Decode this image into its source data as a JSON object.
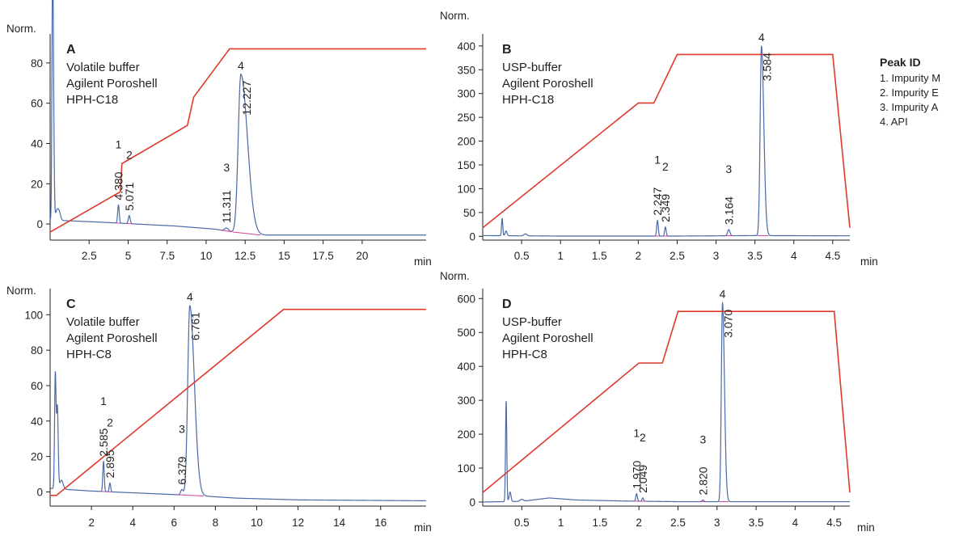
{
  "legend": {
    "title": "Peak ID",
    "items": [
      "1. Impurity M",
      "2. Impurity E",
      "3. Impurity A",
      "4. API"
    ]
  },
  "colors": {
    "signal": "#4a6aa8",
    "gradient": "#e03a2a",
    "baseline": "#d0439b",
    "axis": "#231f20"
  },
  "chart_data": [
    {
      "type": "line",
      "panel": "A",
      "description": [
        "Volatile buffer",
        "Agilent Poroshell",
        "HPH-C18"
      ],
      "ylabel": "Norm.",
      "xlabel": "min",
      "xlim": [
        0,
        24.1
      ],
      "ylim": [
        -8,
        92
      ],
      "x_ticks": [
        2.5,
        5,
        7.5,
        10,
        12.5,
        15,
        17.5,
        20
      ],
      "x_tick_labels": [
        "2.5",
        "5",
        "7.5",
        "10",
        "12.5",
        "15",
        "17.5",
        "20"
      ],
      "y_ticks": [
        0,
        20,
        40,
        60,
        80
      ],
      "y_tick_labels": [
        "0",
        "20",
        "40",
        "60",
        "80"
      ],
      "base_drift": [
        [
          0,
          2.0
        ],
        [
          3,
          1.0
        ],
        [
          8,
          -1.0
        ],
        [
          10.5,
          -2.5
        ],
        [
          13,
          -5.5
        ],
        [
          24.1,
          -5.5
        ]
      ],
      "peaks": [
        {
          "t": 0.15,
          "h": 88,
          "w": 0.04,
          "id": "",
          "rt": ""
        },
        {
          "t": 0.2,
          "h": 64,
          "w": 0.05,
          "id": "",
          "rt": ""
        },
        {
          "t": 0.4,
          "h": 3,
          "w": 0.08,
          "id": "",
          "rt": ""
        },
        {
          "t": 0.55,
          "h": 5,
          "w": 0.1,
          "id": "",
          "rt": ""
        },
        {
          "t": 4.38,
          "h": 9,
          "w": 0.05,
          "id": "1",
          "rt": "4.380"
        },
        {
          "t": 5.071,
          "h": 4,
          "w": 0.06,
          "id": "2",
          "rt": "5.071"
        },
        {
          "t": 11.311,
          "h": 1.5,
          "w": 0.12,
          "id": "3",
          "rt": "11.311"
        },
        {
          "t": 12.227,
          "h": 79,
          "w": 0.17,
          "wr": 0.42,
          "id": "4",
          "rt": "12.227"
        }
      ],
      "gradient_label_y": 0.5,
      "gradient": [
        [
          0,
          -4
        ],
        [
          4.5,
          16
        ],
        [
          4.6,
          30
        ],
        [
          8.8,
          49
        ],
        [
          9.2,
          63
        ],
        [
          11.5,
          87
        ],
        [
          24.1,
          87
        ]
      ]
    },
    {
      "type": "line",
      "panel": "B",
      "description": [
        "USP-buffer",
        "Agilent Poroshell",
        "HPH-C18"
      ],
      "ylabel": "Norm.",
      "xlabel": "min",
      "xlim": [
        0,
        4.72
      ],
      "ylim": [
        -8,
        415
      ],
      "x_ticks": [
        0.5,
        1,
        1.5,
        2,
        2.5,
        3,
        3.5,
        4,
        4.5
      ],
      "x_tick_labels": [
        "0.5",
        "1",
        "1.5",
        "2",
        "2.5",
        "3",
        "3.5",
        "4",
        "4.5"
      ],
      "y_ticks": [
        0,
        50,
        100,
        150,
        200,
        250,
        300,
        350,
        400
      ],
      "y_tick_labels": [
        "0",
        "50",
        "100",
        "150",
        "200",
        "250",
        "300",
        "350",
        "400"
      ],
      "base_drift": [
        [
          0,
          1.5
        ],
        [
          1,
          0.5
        ],
        [
          2.5,
          0.5
        ],
        [
          3.5,
          1.5
        ],
        [
          4.72,
          1
        ]
      ],
      "peaks": [
        {
          "t": 0.25,
          "h": 36,
          "w": 0.008,
          "id": "",
          "rt": ""
        },
        {
          "t": 0.3,
          "h": 10,
          "w": 0.012,
          "id": "",
          "rt": ""
        },
        {
          "t": 0.55,
          "h": 4,
          "w": 0.02,
          "id": "",
          "rt": ""
        },
        {
          "t": 2.247,
          "h": 33,
          "w": 0.01,
          "id": "1",
          "rt": "2.247"
        },
        {
          "t": 2.349,
          "h": 19,
          "w": 0.01,
          "id": "2",
          "rt": "2.349"
        },
        {
          "t": 3.164,
          "h": 13,
          "w": 0.015,
          "id": "3",
          "rt": "3.164"
        },
        {
          "t": 3.584,
          "h": 398,
          "w": 0.017,
          "wr": 0.03,
          "id": "4",
          "rt": "3.584"
        }
      ],
      "gradient_label_y": 0.5,
      "gradient": [
        [
          0,
          18
        ],
        [
          2,
          280
        ],
        [
          2.2,
          280
        ],
        [
          2.5,
          382
        ],
        [
          4.5,
          382
        ],
        [
          4.72,
          18
        ]
      ]
    },
    {
      "type": "line",
      "panel": "C",
      "description": [
        "Volatile buffer",
        "Agilent Poroshell",
        "HPH-C8"
      ],
      "ylabel": "Norm.",
      "xlabel": "min",
      "xlim": [
        0,
        18.2
      ],
      "ylim": [
        -8,
        112
      ],
      "x_ticks": [
        2,
        4,
        6,
        8,
        10,
        12,
        14,
        16
      ],
      "x_tick_labels": [
        "2",
        "4",
        "6",
        "8",
        "10",
        "12",
        "14",
        "16"
      ],
      "y_ticks": [
        0,
        20,
        40,
        60,
        80,
        100
      ],
      "y_tick_labels": [
        "0",
        "20",
        "40",
        "60",
        "80",
        "100"
      ],
      "base_drift": [
        [
          0,
          2.0
        ],
        [
          2,
          0.5
        ],
        [
          5,
          -1.0
        ],
        [
          7,
          -2.0
        ],
        [
          9,
          -3.5
        ],
        [
          12,
          -4.5
        ],
        [
          18.2,
          -5
        ]
      ],
      "peaks": [
        {
          "t": 0.25,
          "h": 64,
          "w": 0.035,
          "id": "",
          "rt": ""
        },
        {
          "t": 0.35,
          "h": 46,
          "w": 0.04,
          "id": "",
          "rt": ""
        },
        {
          "t": 0.55,
          "h": 5,
          "w": 0.08,
          "id": "",
          "rt": ""
        },
        {
          "t": 2.585,
          "h": 17,
          "w": 0.035,
          "id": "1",
          "rt": "2.585"
        },
        {
          "t": 2.895,
          "h": 5,
          "w": 0.035,
          "id": "2",
          "rt": "2.895"
        },
        {
          "t": 6.379,
          "h": 3,
          "w": 0.06,
          "id": "3",
          "rt": "6.379"
        },
        {
          "t": 6.761,
          "h": 107,
          "w": 0.1,
          "wr": 0.22,
          "id": "4",
          "rt": "6.761"
        }
      ],
      "gradient_label_y": 0.5,
      "gradient": [
        [
          0,
          -2
        ],
        [
          0.3,
          -2
        ],
        [
          11.3,
          103
        ],
        [
          18.2,
          103
        ]
      ]
    },
    {
      "type": "line",
      "panel": "D",
      "description": [
        "USP-buffer",
        "Agilent Poroshell",
        "HPH-C8"
      ],
      "ylabel": "Norm.",
      "xlabel": "min",
      "xlim": [
        0,
        4.7
      ],
      "ylim": [
        -12,
        615
      ],
      "x_ticks": [
        0.5,
        1,
        1.5,
        2,
        2.5,
        3,
        3.5,
        4,
        4.5
      ],
      "x_tick_labels": [
        "0.5",
        "1",
        "1.5",
        "2",
        "2.5",
        "3",
        "3.5",
        "4",
        "4.5"
      ],
      "y_ticks": [
        0,
        100,
        200,
        300,
        400,
        500,
        600
      ],
      "y_tick_labels": [
        "0",
        "100",
        "200",
        "300",
        "400",
        "500",
        "600"
      ],
      "base_drift": [
        [
          0,
          0
        ],
        [
          0.5,
          2
        ],
        [
          0.85,
          12
        ],
        [
          1.2,
          6
        ],
        [
          1.8,
          3
        ],
        [
          2.5,
          1
        ],
        [
          4.7,
          1
        ]
      ],
      "peaks": [
        {
          "t": 0.3,
          "h": 296,
          "w": 0.008,
          "id": "",
          "rt": ""
        },
        {
          "t": 0.35,
          "h": 28,
          "w": 0.012,
          "id": "",
          "rt": ""
        },
        {
          "t": 0.5,
          "h": 6,
          "w": 0.02,
          "id": "",
          "rt": ""
        },
        {
          "t": 1.97,
          "h": 22,
          "w": 0.01,
          "id": "1",
          "rt": "1.970"
        },
        {
          "t": 2.049,
          "h": 10,
          "w": 0.01,
          "id": "2",
          "rt": "2.049"
        },
        {
          "t": 2.82,
          "h": 5,
          "w": 0.012,
          "id": "3",
          "rt": "2.820"
        },
        {
          "t": 3.07,
          "h": 586,
          "w": 0.015,
          "wr": 0.025,
          "id": "4",
          "rt": "3.070"
        }
      ],
      "gradient_label_y": 0.5,
      "gradient": [
        [
          0,
          28
        ],
        [
          2,
          410
        ],
        [
          2.3,
          410
        ],
        [
          2.5,
          562
        ],
        [
          4.5,
          562
        ],
        [
          4.7,
          28
        ]
      ]
    }
  ]
}
